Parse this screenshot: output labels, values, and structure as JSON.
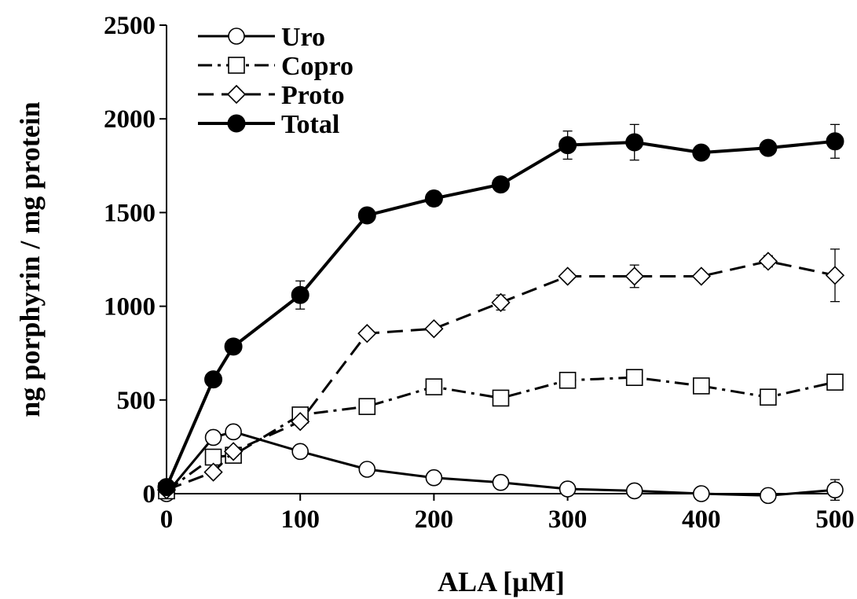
{
  "chart_data": {
    "type": "line",
    "xlabel": "ALA [µM]",
    "ylabel": "ng porphyrin / mg protein",
    "xlim": [
      0,
      500
    ],
    "ylim": [
      0,
      2500
    ],
    "xticks": [
      "0",
      "100",
      "200",
      "300",
      "400",
      "500"
    ],
    "yticks": [
      "0",
      "500",
      "1000",
      "1500",
      "2000",
      "2500"
    ],
    "grid": false,
    "legend_position": "top-left",
    "x": [
      0,
      35,
      50,
      100,
      150,
      200,
      250,
      300,
      350,
      400,
      450,
      500
    ],
    "series": [
      {
        "name": "Uro",
        "marker": "circle-open",
        "line": "solid",
        "values": [
          0,
          300,
          330,
          225,
          130,
          85,
          60,
          25,
          15,
          0,
          -10,
          20
        ],
        "errors": [
          0,
          15,
          15,
          20,
          20,
          20,
          20,
          20,
          15,
          15,
          10,
          55
        ]
      },
      {
        "name": "Copro",
        "marker": "square-open",
        "line": "dash-dot",
        "values": [
          15,
          195,
          205,
          420,
          465,
          570,
          510,
          605,
          620,
          575,
          515,
          595
        ],
        "errors": [
          0,
          15,
          15,
          20,
          30,
          30,
          15,
          40,
          30,
          20,
          25,
          25
        ]
      },
      {
        "name": "Proto",
        "marker": "diamond-open",
        "line": "dashed",
        "values": [
          20,
          115,
          225,
          385,
          855,
          880,
          1020,
          1160,
          1160,
          1160,
          1240,
          1165
        ],
        "errors": [
          0,
          10,
          15,
          20,
          20,
          15,
          40,
          20,
          60,
          20,
          30,
          140
        ]
      },
      {
        "name": "Total",
        "marker": "circle-filled",
        "line": "solid",
        "values": [
          35,
          610,
          785,
          1060,
          1485,
          1575,
          1650,
          1860,
          1875,
          1820,
          1845,
          1880
        ],
        "errors": [
          0,
          15,
          15,
          75,
          15,
          40,
          20,
          75,
          95,
          15,
          30,
          90
        ]
      }
    ]
  }
}
